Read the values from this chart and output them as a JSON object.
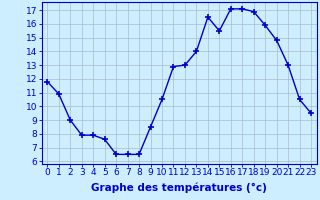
{
  "hours": [
    0,
    1,
    2,
    3,
    4,
    5,
    6,
    7,
    8,
    9,
    10,
    11,
    12,
    13,
    14,
    15,
    16,
    17,
    18,
    19,
    20,
    21,
    22,
    23
  ],
  "temperatures": [
    11.8,
    10.9,
    9.0,
    7.9,
    7.9,
    7.6,
    6.5,
    6.5,
    6.5,
    8.5,
    10.5,
    12.9,
    13.0,
    14.0,
    16.5,
    15.5,
    17.1,
    17.1,
    16.9,
    15.9,
    14.8,
    13.0,
    10.5,
    9.5
  ],
  "line_color": "#0000cc",
  "marker": "+",
  "marker_size": 4,
  "marker_lw": 1.2,
  "background_color": "#cceeff",
  "grid_color": "#aabbcc",
  "xlabel": "Graphe des températures (°c)",
  "xlabel_fontsize": 7.5,
  "ylabel_ticks": [
    6,
    7,
    8,
    9,
    10,
    11,
    12,
    13,
    14,
    15,
    16,
    17
  ],
  "xlim": [
    -0.5,
    23.5
  ],
  "ylim": [
    5.8,
    17.6
  ],
  "tick_fontsize": 6.5,
  "axis_color": "#0000cc",
  "linewidth": 1.0,
  "xlabel_fontweight": "bold"
}
